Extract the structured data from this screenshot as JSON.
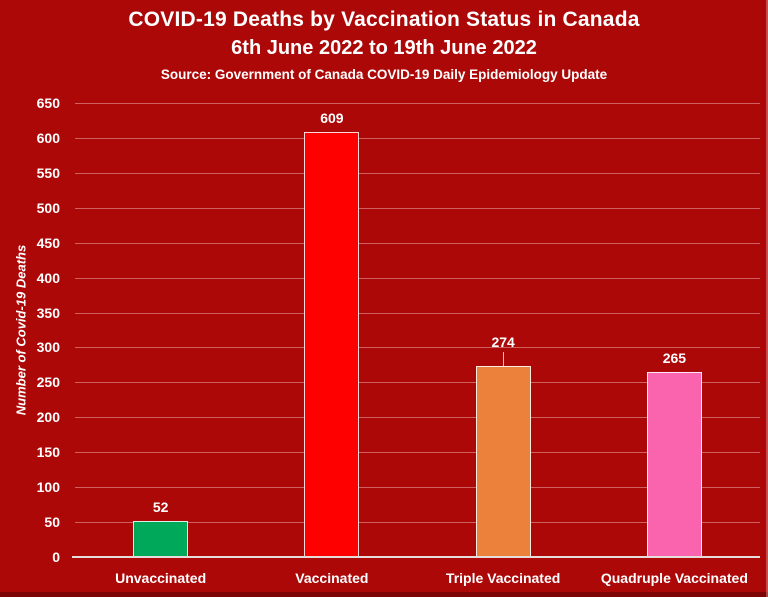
{
  "colors": {
    "background": "#AC0808",
    "text": "#FFFFFF",
    "gridline": "rgba(255,220,220,0.42)",
    "axis_line": "#E6DCDC"
  },
  "chart_data": {
    "type": "bar",
    "title": "COVID-19 Deaths by Vaccination Status in Canada",
    "subtitle": "6th June 2022 to 19th June 2022",
    "source": "Source: Government of Canada COVID-19 Daily Epidemiology Update",
    "categories": [
      "Unvaccinated",
      "Vaccinated",
      "Triple Vaccinated",
      "Quadruple Vaccinated"
    ],
    "values": [
      52,
      609,
      274,
      265
    ],
    "bar_colors": [
      "#00A859",
      "#FE0000",
      "#EC813B",
      "#FA64AE"
    ],
    "value_labels": [
      "52",
      "609",
      "274",
      "265"
    ],
    "value_label_leader": [
      false,
      false,
      true,
      false
    ],
    "xlabel": "",
    "ylabel": "Number of Covid-19 Deaths",
    "ylim": [
      0,
      650
    ],
    "ytick_step": 50,
    "yticks": [
      0,
      50,
      100,
      150,
      200,
      250,
      300,
      350,
      400,
      450,
      500,
      550,
      600,
      650
    ],
    "grid": true,
    "legend": false
  }
}
